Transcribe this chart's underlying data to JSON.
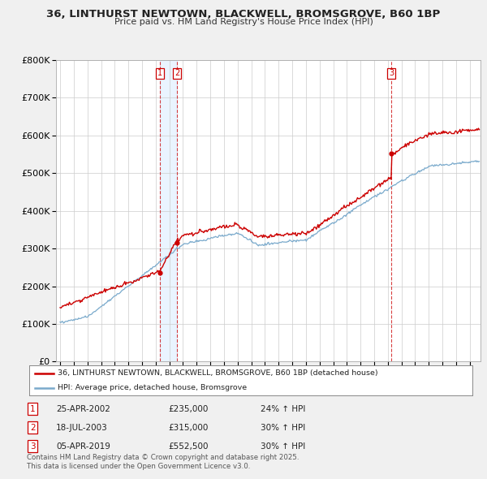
{
  "title": "36, LINTHURST NEWTOWN, BLACKWELL, BROMSGROVE, B60 1BP",
  "subtitle": "Price paid vs. HM Land Registry's House Price Index (HPI)",
  "bg_color": "#f0f0f0",
  "plot_bg_color": "#ffffff",
  "red_color": "#cc0000",
  "blue_color": "#7aaacc",
  "dashed_color": "#cc0000",
  "sale_events": [
    {
      "label": "1",
      "date_year": 2002.32,
      "price": 235000,
      "hpi_pct": "24% ↑ HPI",
      "date_str": "25-APR-2002"
    },
    {
      "label": "2",
      "date_year": 2003.55,
      "price": 315000,
      "hpi_pct": "30% ↑ HPI",
      "date_str": "18-JUL-2003"
    },
    {
      "label": "3",
      "date_year": 2019.26,
      "price": 552500,
      "hpi_pct": "30% ↑ HPI",
      "date_str": "05-APR-2019"
    }
  ],
  "legend_line1": "36, LINTHURST NEWTOWN, BLACKWELL, BROMSGROVE, B60 1BP (detached house)",
  "legend_line2": "HPI: Average price, detached house, Bromsgrove",
  "footer": "Contains HM Land Registry data © Crown copyright and database right 2025.\nThis data is licensed under the Open Government Licence v3.0.",
  "ylim": [
    0,
    800000
  ],
  "yticks": [
    0,
    100000,
    200000,
    300000,
    400000,
    500000,
    600000,
    700000,
    800000
  ],
  "xlim_start": 1994.7,
  "xlim_end": 2025.8
}
